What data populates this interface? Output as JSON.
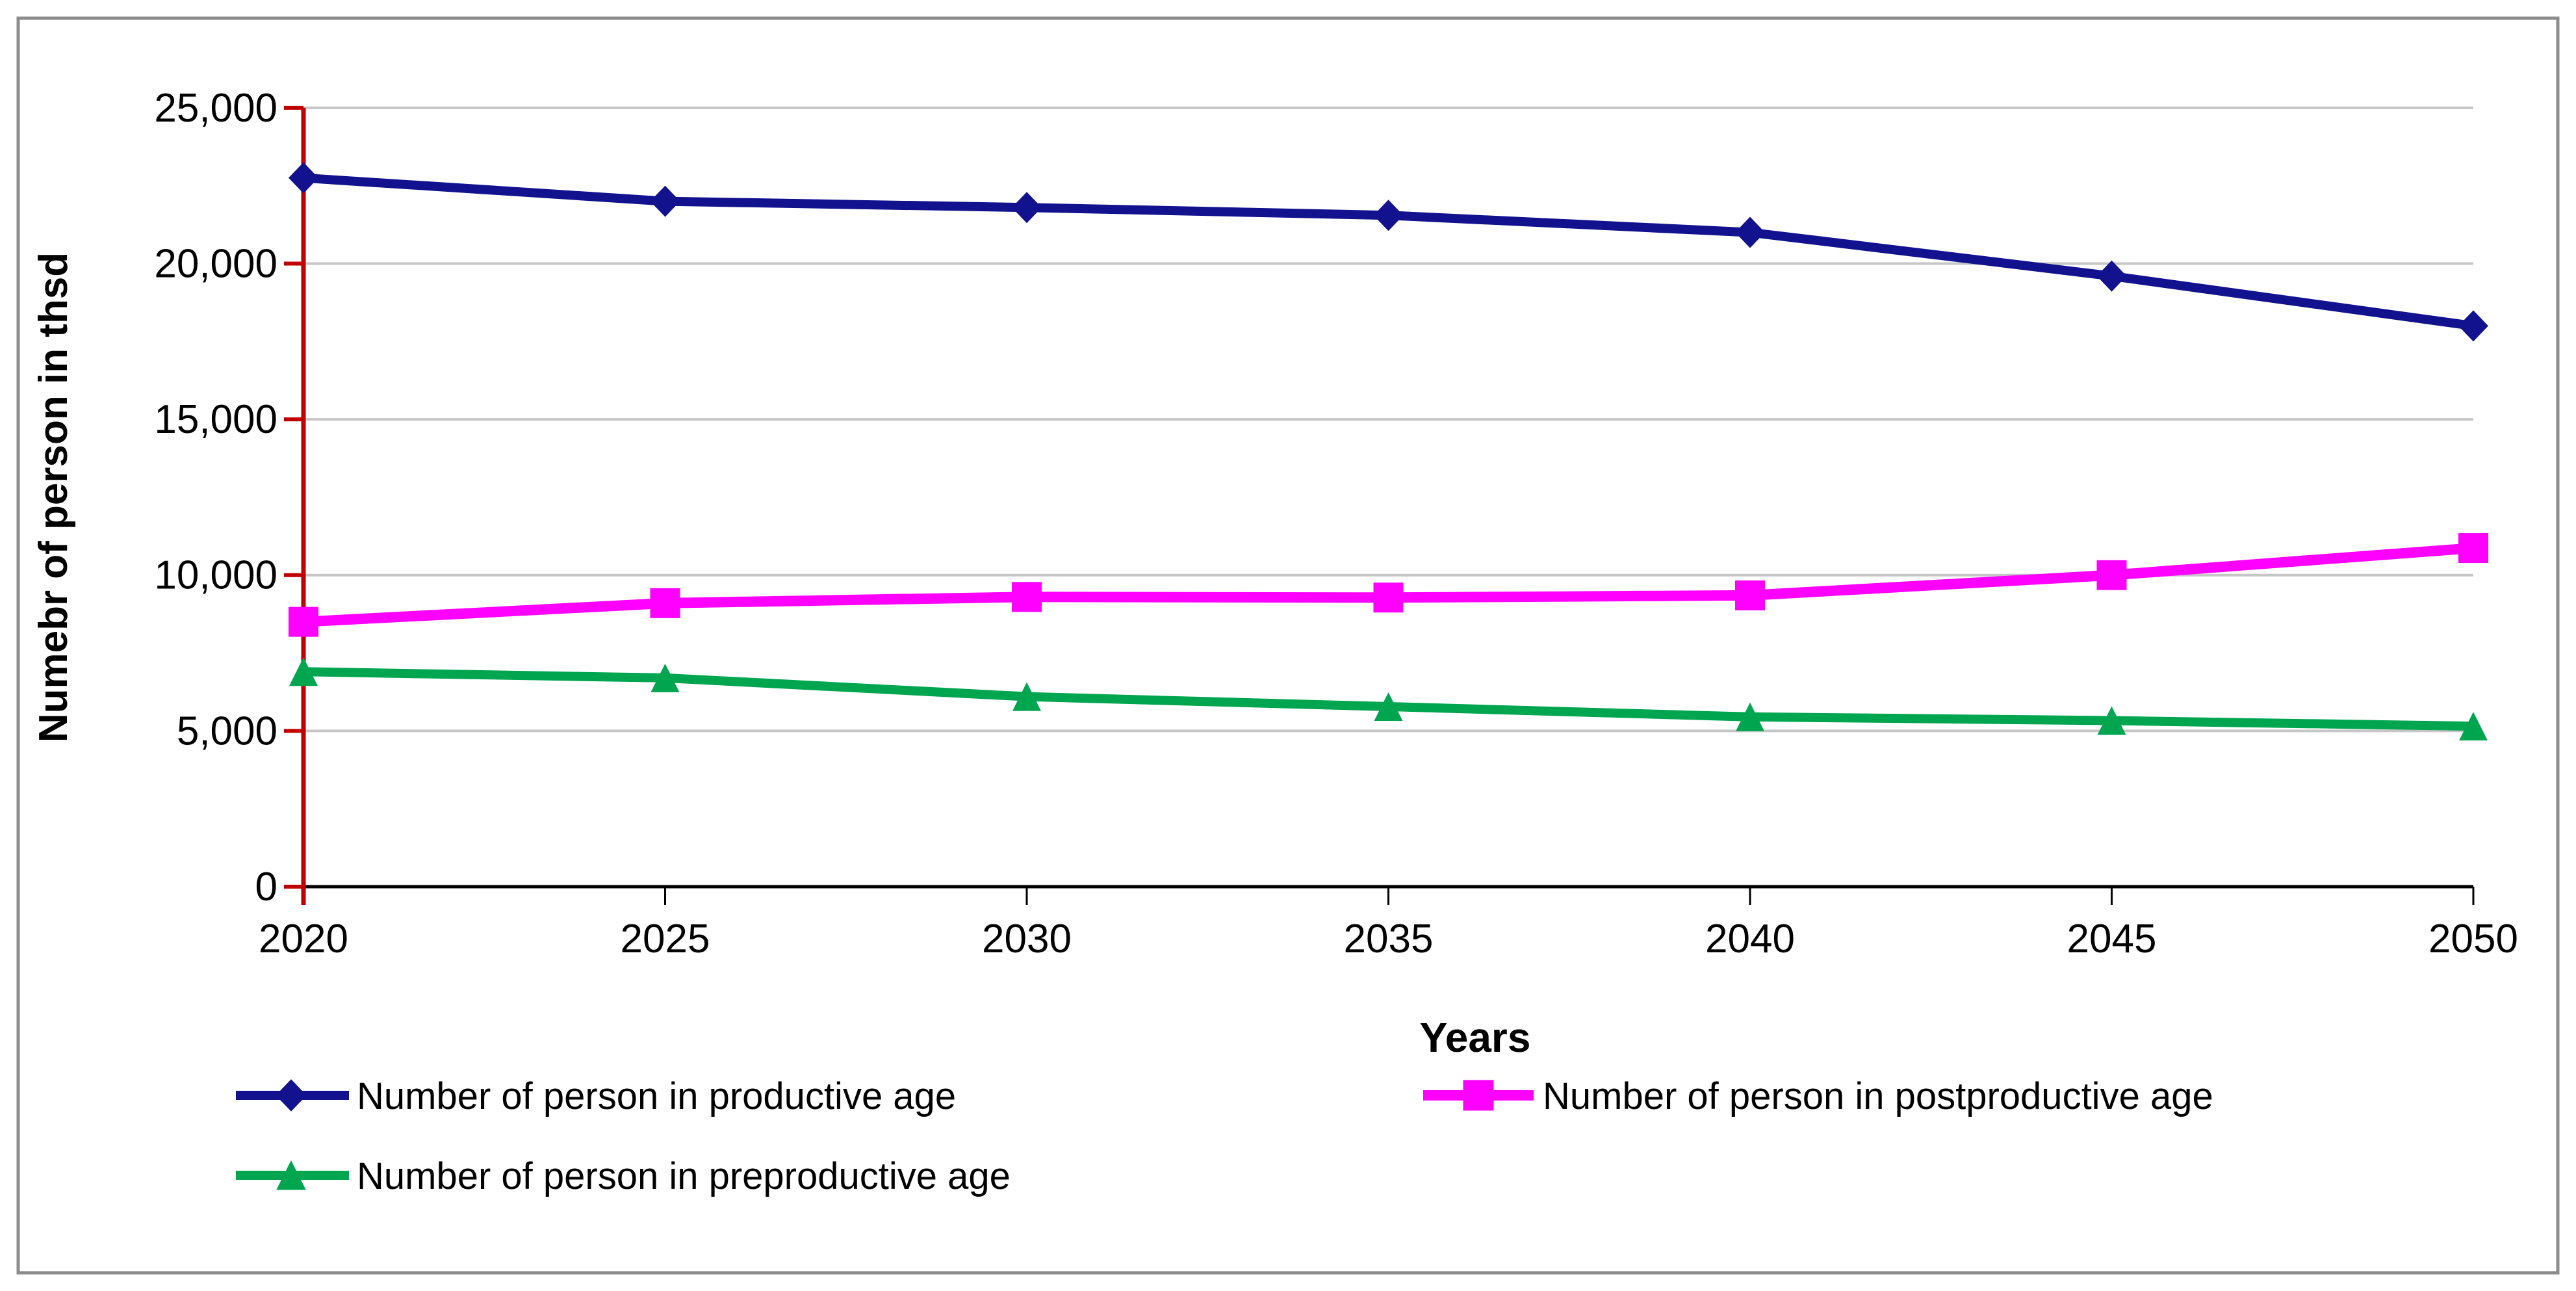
{
  "figure": {
    "background": "#FFFFFF",
    "frame_border_color": "#8C8C8C"
  },
  "y_axis": {
    "title": "Numebr of person in thsd",
    "axis_color": "#C00000",
    "gridline_color": "#C6C6C6",
    "ticks": [
      {
        "value": 25000,
        "label": "25,000"
      },
      {
        "value": 20000,
        "label": "20,000"
      },
      {
        "value": 15000,
        "label": "15,000"
      },
      {
        "value": 10000,
        "label": "10,000"
      },
      {
        "value": 5000,
        "label": "5,000"
      },
      {
        "value": 0,
        "label": "0"
      }
    ]
  },
  "x_axis": {
    "title": "Years",
    "axis_color": "#000000",
    "ticks": [
      "2020",
      "2025",
      "2030",
      "2035",
      "2040",
      "2045",
      "2050"
    ]
  },
  "legend": {
    "items": [
      {
        "label": "Number of person in productive age",
        "marker": "diamond",
        "series_index": 0
      },
      {
        "label": "Number of person in postproductive age",
        "marker": "square",
        "series_index": 1
      },
      {
        "label": "Number of person in preproductive age",
        "marker": "triangle",
        "series_index": 2
      }
    ]
  },
  "chart_data": {
    "type": "line",
    "title": "",
    "xlabel": "Years",
    "ylabel": "Numebr of person in thsd",
    "x": [
      2020,
      2025,
      2030,
      2035,
      2040,
      2045,
      2050
    ],
    "ylim": [
      0,
      25000
    ],
    "y_tick_step": 5000,
    "grid": true,
    "legend_position": "bottom",
    "series": [
      {
        "name": "Number of person in productive age",
        "color": "#12128E",
        "marker": "diamond",
        "line_width": 14,
        "values": [
          22750,
          22000,
          21800,
          21550,
          21000,
          19600,
          18000
        ]
      },
      {
        "name": "Number of person in postproductive age",
        "color": "#FF00FF",
        "marker": "square",
        "line_width": 16,
        "values": [
          8500,
          9100,
          9300,
          9280,
          9350,
          10000,
          10870
        ]
      },
      {
        "name": "Number of person in preproductive age",
        "color": "#00A550",
        "marker": "triangle",
        "line_width": 14,
        "values": [
          6900,
          6700,
          6100,
          5780,
          5450,
          5330,
          5150
        ]
      }
    ]
  }
}
